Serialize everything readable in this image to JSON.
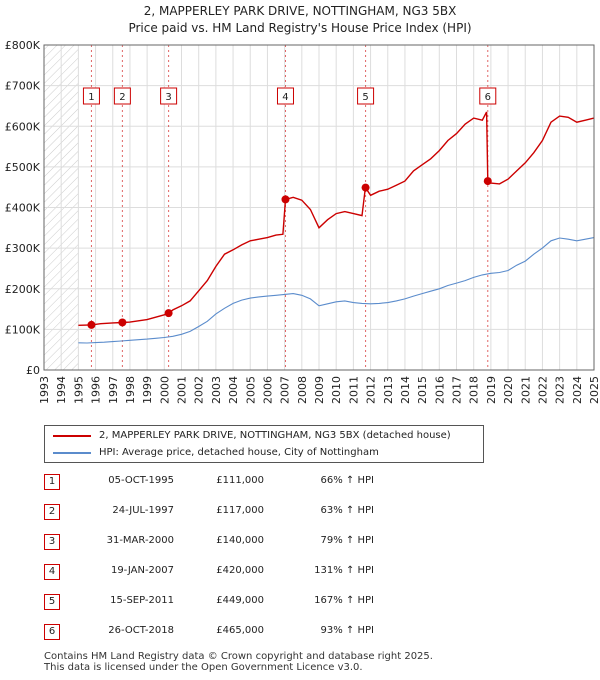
{
  "chart_data": {
    "type": "line",
    "title": "2, MAPPERLEY PARK DRIVE, NOTTINGHAM, NG3 5BX",
    "subtitle": "Price paid vs. HM Land Registry's House Price Index (HPI)",
    "xlim": [
      1993,
      2025
    ],
    "ylim": [
      0,
      800000
    ],
    "x_ticks": [
      1993,
      1994,
      1995,
      1996,
      1997,
      1998,
      1999,
      2000,
      2001,
      2002,
      2003,
      2004,
      2005,
      2006,
      2007,
      2008,
      2009,
      2010,
      2011,
      2012,
      2013,
      2014,
      2015,
      2016,
      2017,
      2018,
      2019,
      2020,
      2021,
      2022,
      2023,
      2024,
      2025
    ],
    "y_ticks": [
      {
        "value": 0,
        "label": "£0"
      },
      {
        "value": 100000,
        "label": "£100K"
      },
      {
        "value": 200000,
        "label": "£200K"
      },
      {
        "value": 300000,
        "label": "£300K"
      },
      {
        "value": 400000,
        "label": "£400K"
      },
      {
        "value": 500000,
        "label": "£500K"
      },
      {
        "value": 600000,
        "label": "£600K"
      },
      {
        "value": 700000,
        "label": "£700K"
      },
      {
        "value": 800000,
        "label": "£800K"
      }
    ],
    "hatched_before": 1995.0,
    "series": [
      {
        "name": "2, MAPPERLEY PARK DRIVE, NOTTINGHAM, NG3 5BX (detached house)",
        "color": "#cc0000",
        "points": [
          [
            1995.0,
            110000
          ],
          [
            1995.76,
            111000
          ],
          [
            1996.3,
            114000
          ],
          [
            1997.0,
            116000
          ],
          [
            1997.56,
            117000
          ],
          [
            1998.0,
            118000
          ],
          [
            1998.5,
            121000
          ],
          [
            1999.0,
            124000
          ],
          [
            1999.5,
            130000
          ],
          [
            2000.0,
            136000
          ],
          [
            2000.25,
            140000
          ],
          [
            2000.5,
            148000
          ],
          [
            2001.0,
            158000
          ],
          [
            2001.5,
            170000
          ],
          [
            2002.0,
            195000
          ],
          [
            2002.5,
            220000
          ],
          [
            2003.0,
            255000
          ],
          [
            2003.5,
            285000
          ],
          [
            2004.0,
            296000
          ],
          [
            2004.5,
            308000
          ],
          [
            2005.0,
            318000
          ],
          [
            2005.5,
            322000
          ],
          [
            2006.0,
            326000
          ],
          [
            2006.5,
            332000
          ],
          [
            2006.9,
            334000
          ],
          [
            2007.05,
            420000
          ],
          [
            2007.5,
            425000
          ],
          [
            2008.0,
            418000
          ],
          [
            2008.5,
            395000
          ],
          [
            2009.0,
            350000
          ],
          [
            2009.5,
            370000
          ],
          [
            2010.0,
            385000
          ],
          [
            2010.5,
            390000
          ],
          [
            2011.0,
            385000
          ],
          [
            2011.5,
            380000
          ],
          [
            2011.7,
            449000
          ],
          [
            2012.0,
            430000
          ],
          [
            2012.5,
            440000
          ],
          [
            2013.0,
            445000
          ],
          [
            2013.5,
            455000
          ],
          [
            2014.0,
            465000
          ],
          [
            2014.5,
            490000
          ],
          [
            2015.0,
            505000
          ],
          [
            2015.5,
            520000
          ],
          [
            2016.0,
            540000
          ],
          [
            2016.5,
            565000
          ],
          [
            2017.0,
            582000
          ],
          [
            2017.5,
            605000
          ],
          [
            2018.0,
            620000
          ],
          [
            2018.5,
            615000
          ],
          [
            2018.75,
            635000
          ],
          [
            2018.82,
            465000
          ],
          [
            2019.0,
            460000
          ],
          [
            2019.5,
            458000
          ],
          [
            2020.0,
            470000
          ],
          [
            2020.5,
            490000
          ],
          [
            2021.0,
            510000
          ],
          [
            2021.5,
            535000
          ],
          [
            2022.0,
            565000
          ],
          [
            2022.5,
            610000
          ],
          [
            2023.0,
            625000
          ],
          [
            2023.5,
            622000
          ],
          [
            2024.0,
            610000
          ],
          [
            2024.5,
            615000
          ],
          [
            2025.0,
            620000
          ]
        ]
      },
      {
        "name": "HPI: Average price, detached house, City of Nottingham",
        "color": "#5b8ccc",
        "points": [
          [
            1995.0,
            67000
          ],
          [
            1995.5,
            66500
          ],
          [
            1996.0,
            67500
          ],
          [
            1996.5,
            68500
          ],
          [
            1997.0,
            70000
          ],
          [
            1997.5,
            71500
          ],
          [
            1998.0,
            73000
          ],
          [
            1998.5,
            74500
          ],
          [
            1999.0,
            76000
          ],
          [
            1999.5,
            78000
          ],
          [
            2000.0,
            80000
          ],
          [
            2000.5,
            83000
          ],
          [
            2001.0,
            88000
          ],
          [
            2001.5,
            95000
          ],
          [
            2002.0,
            107000
          ],
          [
            2002.5,
            120000
          ],
          [
            2003.0,
            138000
          ],
          [
            2003.5,
            152000
          ],
          [
            2004.0,
            164000
          ],
          [
            2004.5,
            172000
          ],
          [
            2005.0,
            177000
          ],
          [
            2005.5,
            180000
          ],
          [
            2006.0,
            182000
          ],
          [
            2006.5,
            184000
          ],
          [
            2007.0,
            186000
          ],
          [
            2007.5,
            188000
          ],
          [
            2008.0,
            184000
          ],
          [
            2008.5,
            175000
          ],
          [
            2009.0,
            158000
          ],
          [
            2009.5,
            163000
          ],
          [
            2010.0,
            168000
          ],
          [
            2010.5,
            170000
          ],
          [
            2011.0,
            166000
          ],
          [
            2011.5,
            164000
          ],
          [
            2012.0,
            163000
          ],
          [
            2012.5,
            164000
          ],
          [
            2013.0,
            166000
          ],
          [
            2013.5,
            170000
          ],
          [
            2014.0,
            175000
          ],
          [
            2014.5,
            182000
          ],
          [
            2015.0,
            188000
          ],
          [
            2015.5,
            194000
          ],
          [
            2016.0,
            200000
          ],
          [
            2016.5,
            208000
          ],
          [
            2017.0,
            214000
          ],
          [
            2017.5,
            220000
          ],
          [
            2018.0,
            228000
          ],
          [
            2018.5,
            234000
          ],
          [
            2019.0,
            238000
          ],
          [
            2019.5,
            240000
          ],
          [
            2020.0,
            245000
          ],
          [
            2020.5,
            258000
          ],
          [
            2021.0,
            268000
          ],
          [
            2021.5,
            285000
          ],
          [
            2022.0,
            300000
          ],
          [
            2022.5,
            318000
          ],
          [
            2023.0,
            325000
          ],
          [
            2023.5,
            322000
          ],
          [
            2024.0,
            318000
          ],
          [
            2024.5,
            322000
          ],
          [
            2025.0,
            326000
          ]
        ]
      }
    ],
    "sales": [
      {
        "n": "1",
        "x": 1995.76,
        "y": 111000
      },
      {
        "n": "2",
        "x": 1997.56,
        "y": 117000
      },
      {
        "n": "3",
        "x": 2000.25,
        "y": 140000
      },
      {
        "n": "4",
        "x": 2007.05,
        "y": 420000
      },
      {
        "n": "5",
        "x": 2011.71,
        "y": 449000
      },
      {
        "n": "6",
        "x": 2018.82,
        "y": 465000
      }
    ]
  },
  "legend": {
    "property_label": "2, MAPPERLEY PARK DRIVE, NOTTINGHAM, NG3 5BX (detached house)",
    "hpi_label": "HPI: Average price, detached house, City of Nottingham"
  },
  "transactions": [
    {
      "n": "1",
      "date": "05-OCT-1995",
      "price": "£111,000",
      "hpi": "66% ↑ HPI"
    },
    {
      "n": "2",
      "date": "24-JUL-1997",
      "price": "£117,000",
      "hpi": "63% ↑ HPI"
    },
    {
      "n": "3",
      "date": "31-MAR-2000",
      "price": "£140,000",
      "hpi": "79% ↑ HPI"
    },
    {
      "n": "4",
      "date": "19-JAN-2007",
      "price": "£420,000",
      "hpi": "131% ↑ HPI"
    },
    {
      "n": "5",
      "date": "15-SEP-2011",
      "price": "£449,000",
      "hpi": "167% ↑ HPI"
    },
    {
      "n": "6",
      "date": "26-OCT-2018",
      "price": "£465,000",
      "hpi": "93% ↑ HPI"
    }
  ],
  "footer": {
    "line1": "Contains HM Land Registry data © Crown copyright and database right 2025.",
    "line2": "This data is licensed under the Open Government Licence v3.0."
  },
  "colors": {
    "property": "#cc0000",
    "hpi": "#5b8ccc",
    "grid": "#dddddd",
    "plot_bg": "#ffffff"
  }
}
